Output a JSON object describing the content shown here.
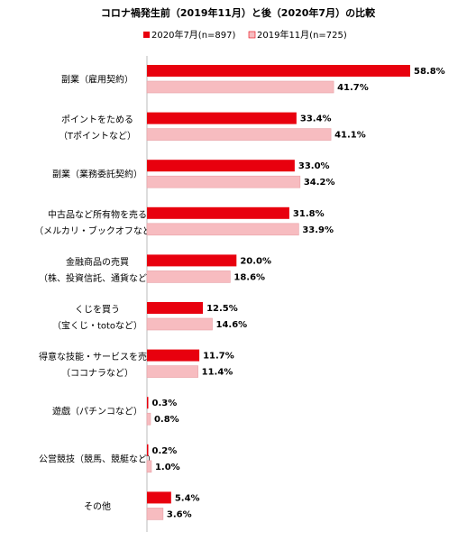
{
  "chart_data": {
    "type": "bar",
    "orientation": "horizontal",
    "title": "コロナ禍発生前（2019年11月）と後（2020年7月）の比較",
    "legend_position": "top-center",
    "grid": false,
    "xlim": [
      0,
      60
    ],
    "value_suffix": "%",
    "categories": [
      [
        "副業（雇用契約）"
      ],
      [
        "ポイントをためる",
        "（Tポイントなど）"
      ],
      [
        "副業（業務委託契約）"
      ],
      [
        "中古品など所有物を売る",
        "（メルカリ・ブックオフなど）"
      ],
      [
        "金融商品の売買",
        "（株、投資信託、通貨など）"
      ],
      [
        "くじを買う",
        "（宝くじ・totoなど）"
      ],
      [
        "得意な技能・サービスを売る",
        "（ココナラなど）"
      ],
      [
        "遊戯（パチンコなど）"
      ],
      [
        "公営競技（競馬、競艇など）"
      ],
      [
        "その他"
      ]
    ],
    "series": [
      {
        "name": "2020年7月(n=897)",
        "color": "#e8000e",
        "values": [
          58.8,
          33.4,
          33.0,
          31.8,
          20.0,
          12.5,
          11.7,
          0.3,
          0.2,
          5.4
        ]
      },
      {
        "name": "2019年11月(n=725)",
        "color": "#f7bcc0",
        "values": [
          41.7,
          41.1,
          34.2,
          33.9,
          18.6,
          14.6,
          11.4,
          0.8,
          1.0,
          3.6
        ]
      }
    ]
  }
}
